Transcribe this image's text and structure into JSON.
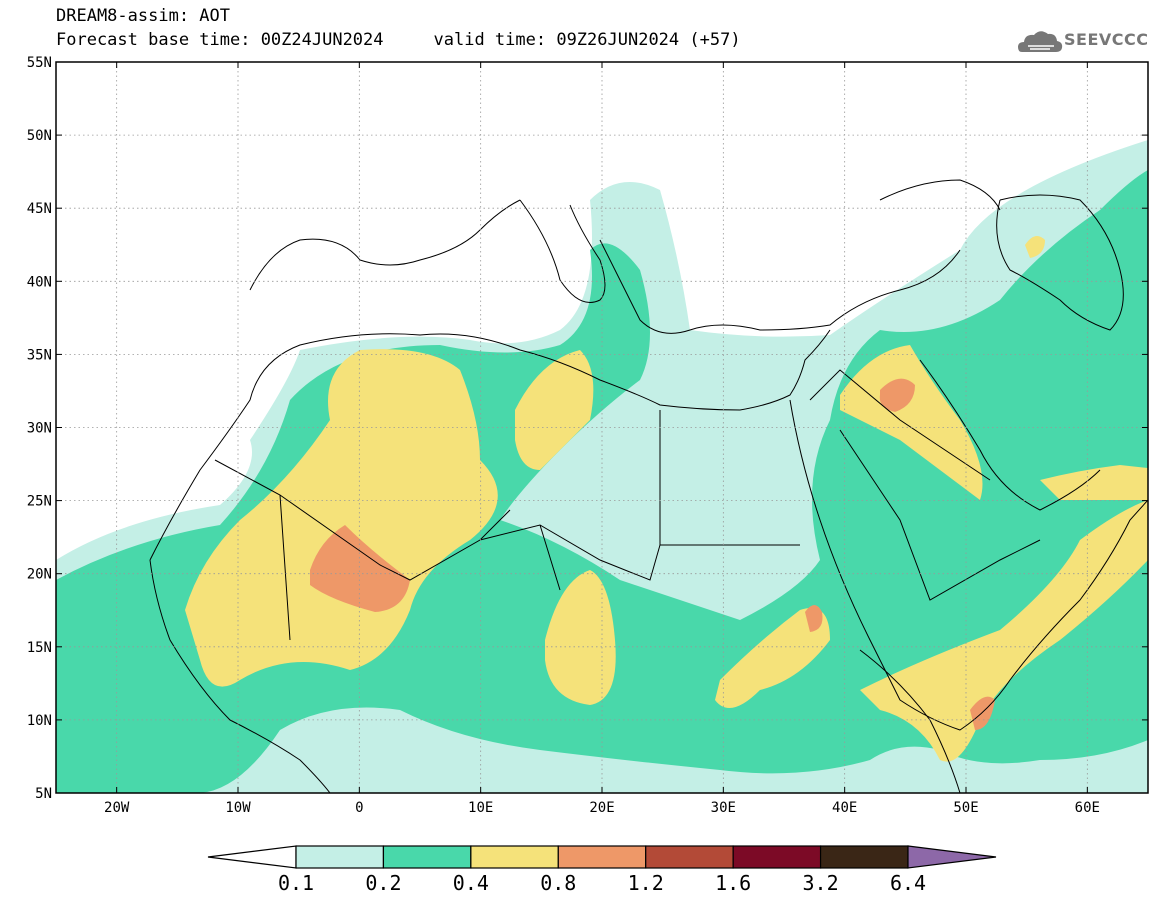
{
  "header": {
    "line1": "DREAM8-assim: AOT",
    "forecast_base": "Forecast base time: 00Z24JUN2024",
    "valid_time": "valid time: 09Z26JUN2024 (+57)"
  },
  "logo": {
    "text": "SEEVCCC",
    "icon": "cloud-logo-icon"
  },
  "map": {
    "lon_range": [
      -25,
      65
    ],
    "lat_range": [
      5,
      55
    ],
    "lon_ticks": [
      {
        "lon": -20,
        "label": "20W"
      },
      {
        "lon": -10,
        "label": "10W"
      },
      {
        "lon": 0,
        "label": "0"
      },
      {
        "lon": 10,
        "label": "10E"
      },
      {
        "lon": 20,
        "label": "20E"
      },
      {
        "lon": 30,
        "label": "30E"
      },
      {
        "lon": 40,
        "label": "40E"
      },
      {
        "lon": 50,
        "label": "50E"
      },
      {
        "lon": 60,
        "label": "60E"
      }
    ],
    "lat_ticks": [
      {
        "lat": 55,
        "label": "55N"
      },
      {
        "lat": 50,
        "label": "50N"
      },
      {
        "lat": 45,
        "label": "45N"
      },
      {
        "lat": 40,
        "label": "40N"
      },
      {
        "lat": 35,
        "label": "35N"
      },
      {
        "lat": 30,
        "label": "30N"
      },
      {
        "lat": 25,
        "label": "25N"
      },
      {
        "lat": 20,
        "label": "20N"
      },
      {
        "lat": 15,
        "label": "15N"
      },
      {
        "lat": 10,
        "label": "10N"
      },
      {
        "lat": 5,
        "label": "5N"
      }
    ],
    "grid": true
  },
  "colorbar": {
    "labels": [
      "0.1",
      "0.2",
      "0.4",
      "0.8",
      "1.2",
      "1.6",
      "3.2",
      "6.4"
    ],
    "colors": [
      "#ffffff",
      "#c4efe6",
      "#49d8aa",
      "#f5e27a",
      "#ee9868",
      "#b34a37",
      "#7c0a26",
      "#3a2616",
      "#8d68a8"
    ]
  }
}
